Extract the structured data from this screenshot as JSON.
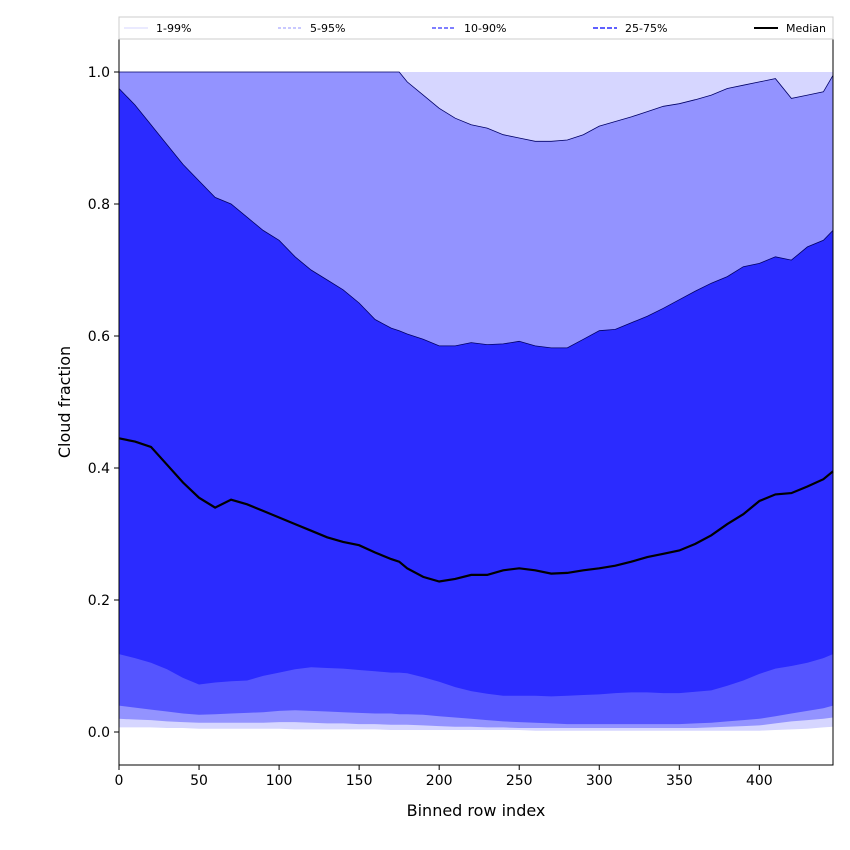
{
  "chart_data": {
    "type": "area",
    "title": "",
    "xlabel": "Binned row index",
    "ylabel": "Cloud fraction",
    "xlim": [
      0,
      446
    ],
    "ylim": [
      -0.05,
      1.05
    ],
    "xticks": [
      0,
      50,
      100,
      150,
      200,
      250,
      300,
      350,
      400
    ],
    "xtick_labels": [
      "0",
      "50",
      "100",
      "150",
      "200",
      "250",
      "300",
      "350",
      "400"
    ],
    "yticks": [
      0.0,
      0.2,
      0.4,
      0.6,
      0.8,
      1.0
    ],
    "ytick_labels": [
      "0.0",
      "0.2",
      "0.4",
      "0.6",
      "0.8",
      "1.0"
    ],
    "grid": false,
    "legend_position": "top",
    "x": [
      0,
      10,
      20,
      30,
      40,
      50,
      60,
      70,
      80,
      90,
      100,
      110,
      120,
      130,
      140,
      150,
      160,
      170,
      175,
      180,
      190,
      200,
      210,
      220,
      230,
      240,
      250,
      260,
      270,
      280,
      290,
      300,
      310,
      320,
      330,
      340,
      350,
      360,
      370,
      380,
      390,
      400,
      410,
      420,
      430,
      440,
      446
    ],
    "series": [
      {
        "name": "1-99%",
        "band": "1-99",
        "color": "#d6d6ff",
        "lower": [
          0.007,
          0.007,
          0.007,
          0.006,
          0.006,
          0.005,
          0.005,
          0.005,
          0.005,
          0.005,
          0.005,
          0.004,
          0.004,
          0.004,
          0.004,
          0.004,
          0.004,
          0.003,
          0.003,
          0.003,
          0.003,
          0.003,
          0.003,
          0.003,
          0.003,
          0.003,
          0.003,
          0.002,
          0.002,
          0.002,
          0.002,
          0.002,
          0.002,
          0.002,
          0.002,
          0.002,
          0.002,
          0.002,
          0.002,
          0.002,
          0.002,
          0.002,
          0.003,
          0.004,
          0.005,
          0.007,
          0.008
        ],
        "upper": [
          1,
          1,
          1,
          1,
          1,
          1,
          1,
          1,
          1,
          1,
          1,
          1,
          1,
          1,
          1,
          1,
          1,
          1,
          1,
          1,
          1,
          1,
          1,
          1,
          1,
          1,
          1,
          1,
          1,
          1,
          1,
          1,
          1,
          1,
          1,
          1,
          1,
          1,
          1,
          1,
          1,
          1,
          1,
          1,
          1,
          1,
          1
        ]
      },
      {
        "name": "5-95%",
        "band": "5-95",
        "color": "#9393ff",
        "lower": [
          0.02,
          0.019,
          0.018,
          0.016,
          0.015,
          0.014,
          0.014,
          0.014,
          0.014,
          0.014,
          0.015,
          0.015,
          0.014,
          0.013,
          0.013,
          0.012,
          0.012,
          0.011,
          0.011,
          0.011,
          0.01,
          0.009,
          0.008,
          0.008,
          0.007,
          0.007,
          0.006,
          0.006,
          0.006,
          0.006,
          0.006,
          0.006,
          0.006,
          0.006,
          0.006,
          0.006,
          0.006,
          0.006,
          0.007,
          0.008,
          0.009,
          0.01,
          0.013,
          0.016,
          0.018,
          0.02,
          0.022
        ],
        "upper": [
          1,
          1,
          1,
          1,
          1,
          1,
          1,
          1,
          1,
          1,
          1,
          1,
          1,
          1,
          1,
          1,
          1,
          1,
          1.0,
          0.985,
          0.965,
          0.945,
          0.93,
          0.92,
          0.915,
          0.905,
          0.9,
          0.895,
          0.895,
          0.897,
          0.905,
          0.918,
          0.925,
          0.932,
          0.94,
          0.948,
          0.952,
          0.958,
          0.965,
          0.975,
          0.98,
          0.985,
          0.99,
          0.96,
          0.965,
          0.97,
          0.995
        ]
      },
      {
        "name": "10-90%",
        "band": "10-90",
        "color": "#5555ff",
        "lower": [
          0.04,
          0.037,
          0.034,
          0.031,
          0.028,
          0.026,
          0.027,
          0.028,
          0.029,
          0.03,
          0.032,
          0.033,
          0.032,
          0.031,
          0.03,
          0.029,
          0.028,
          0.028,
          0.027,
          0.027,
          0.026,
          0.024,
          0.022,
          0.02,
          0.018,
          0.016,
          0.015,
          0.014,
          0.013,
          0.012,
          0.012,
          0.012,
          0.012,
          0.012,
          0.012,
          0.012,
          0.012,
          0.013,
          0.014,
          0.016,
          0.018,
          0.02,
          0.024,
          0.028,
          0.032,
          0.036,
          0.04
        ],
        "upper": [
          0.975,
          0.95,
          0.92,
          0.89,
          0.86,
          0.835,
          0.81,
          0.8,
          0.78,
          0.76,
          0.745,
          0.72,
          0.7,
          0.685,
          0.67,
          0.65,
          0.625,
          0.612,
          0.608,
          0.603,
          0.595,
          0.585,
          0.585,
          0.59,
          0.587,
          0.588,
          0.592,
          0.585,
          0.582,
          0.582,
          0.595,
          0.608,
          0.61,
          0.62,
          0.63,
          0.642,
          0.655,
          0.668,
          0.68,
          0.69,
          0.705,
          0.71,
          0.72,
          0.715,
          0.735,
          0.745,
          0.76
        ]
      },
      {
        "name": "25-75%",
        "band": "25-75",
        "color": "#2b2bff",
        "lower": [
          0.118,
          0.112,
          0.105,
          0.095,
          0.082,
          0.072,
          0.075,
          0.077,
          0.078,
          0.085,
          0.09,
          0.095,
          0.098,
          0.097,
          0.096,
          0.094,
          0.092,
          0.09,
          0.09,
          0.089,
          0.083,
          0.076,
          0.068,
          0.062,
          0.058,
          0.055,
          0.055,
          0.055,
          0.054,
          0.055,
          0.056,
          0.057,
          0.059,
          0.06,
          0.06,
          0.059,
          0.059,
          0.061,
          0.063,
          0.07,
          0.078,
          0.088,
          0.096,
          0.1,
          0.105,
          0.112,
          0.118
        ],
        "upper": [
          0.975,
          0.95,
          0.92,
          0.89,
          0.86,
          0.835,
          0.81,
          0.8,
          0.78,
          0.76,
          0.745,
          0.72,
          0.7,
          0.685,
          0.67,
          0.65,
          0.625,
          0.612,
          0.608,
          0.603,
          0.595,
          0.585,
          0.585,
          0.59,
          0.587,
          0.588,
          0.592,
          0.585,
          0.582,
          0.582,
          0.595,
          0.608,
          0.61,
          0.62,
          0.63,
          0.642,
          0.655,
          0.668,
          0.68,
          0.69,
          0.705,
          0.71,
          0.72,
          0.715,
          0.735,
          0.745,
          0.76
        ]
      },
      {
        "name": "Median",
        "band": "median",
        "color": "#000000",
        "values": [
          0.445,
          0.44,
          0.432,
          0.405,
          0.378,
          0.355,
          0.34,
          0.352,
          0.345,
          0.335,
          0.325,
          0.315,
          0.305,
          0.295,
          0.288,
          0.283,
          0.272,
          0.262,
          0.258,
          0.248,
          0.235,
          0.228,
          0.232,
          0.238,
          0.238,
          0.245,
          0.248,
          0.245,
          0.24,
          0.241,
          0.245,
          0.248,
          0.252,
          0.258,
          0.265,
          0.27,
          0.275,
          0.285,
          0.298,
          0.315,
          0.33,
          0.35,
          0.36,
          0.362,
          0.372,
          0.383,
          0.395
        ]
      }
    ]
  }
}
